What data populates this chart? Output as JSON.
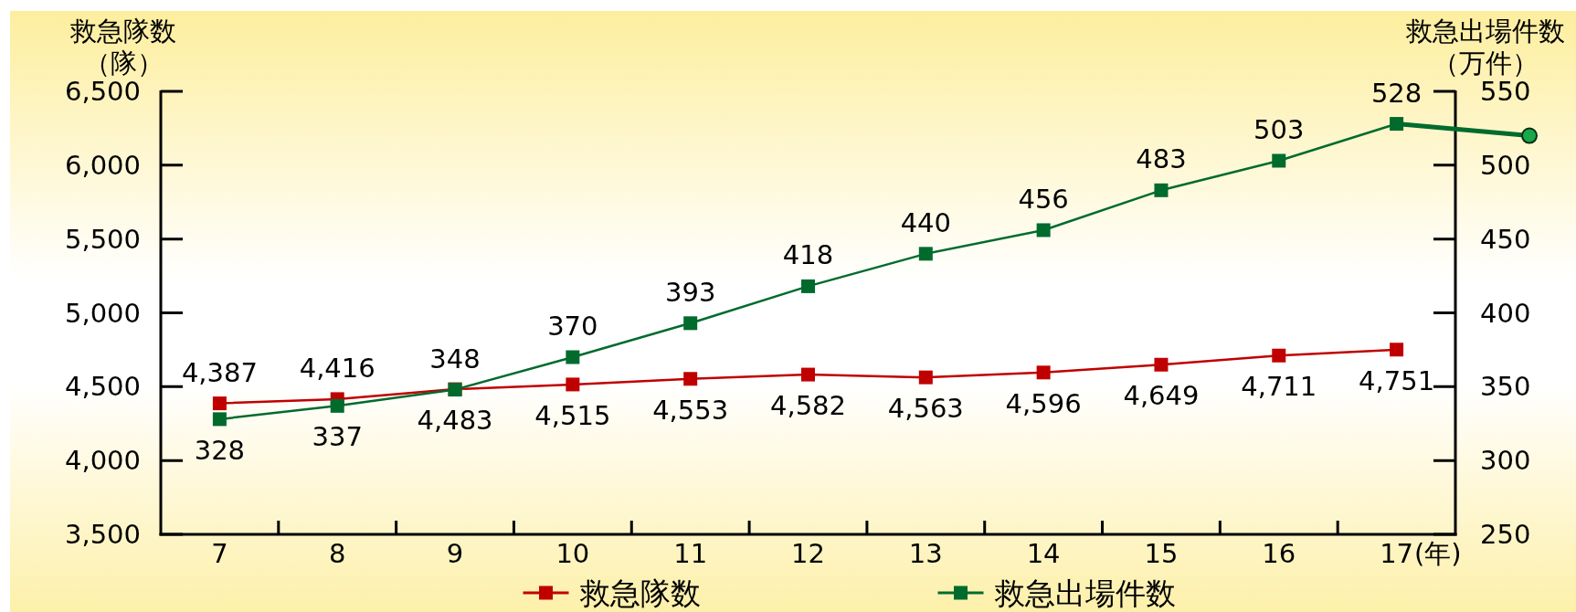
{
  "chart_data": {
    "type": "line",
    "categories": [
      "7",
      "8",
      "9",
      "10",
      "11",
      "12",
      "13",
      "14",
      "15",
      "16",
      "17"
    ],
    "xlabel": "(年)",
    "ylabel": "救急隊数（隊）",
    "y2label": "救急出場件数（万件）",
    "ylim": [
      3500,
      6500
    ],
    "yticks": [
      {
        "value": 3500,
        "label": "3,500"
      },
      {
        "value": 4000,
        "label": "4,000"
      },
      {
        "value": 4500,
        "label": "4,500"
      },
      {
        "value": 5000,
        "label": "5,000"
      },
      {
        "value": 5500,
        "label": "5,500"
      },
      {
        "value": 6000,
        "label": "6,000"
      },
      {
        "value": 6500,
        "label": "6,500"
      }
    ],
    "y2lim": [
      250,
      550
    ],
    "y2ticks": [
      250,
      300,
      350,
      400,
      450,
      500,
      550
    ],
    "marker": "square",
    "legend": "bottom",
    "series": [
      {
        "name": "救急隊数",
        "color": "#c00000",
        "values": [
          4387,
          4416,
          4483,
          4515,
          4553,
          4582,
          4563,
          4596,
          4649,
          4711,
          4751
        ],
        "value_labels": [
          "4,387",
          "4,416",
          "4,483",
          "4,515",
          "4,553",
          "4,582",
          "4,563",
          "4,596",
          "4,649",
          "4,711",
          "4,751"
        ]
      },
      {
        "name": "救急出場件数",
        "color": "#006b2d",
        "axis": "y2",
        "values": [
          328,
          337,
          348,
          370,
          393,
          418,
          440,
          456,
          483,
          503,
          528
        ],
        "value_labels": [
          "328",
          "337",
          "348",
          "370",
          "393",
          "418",
          "440",
          "456",
          "483",
          "503",
          "528"
        ]
      }
    ]
  }
}
